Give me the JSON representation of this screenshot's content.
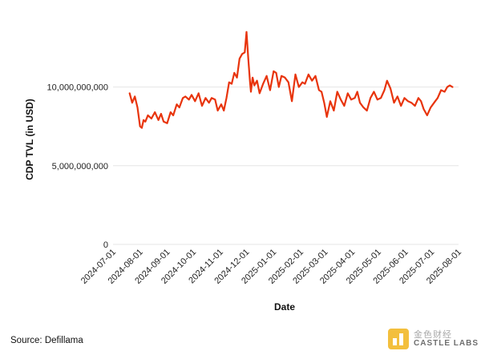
{
  "chart_data": {
    "type": "line",
    "title": "",
    "xlabel": "Date",
    "ylabel": "CDP TVL (in USD)",
    "y_ticks": [
      0,
      5000000000,
      10000000000
    ],
    "y_tick_labels": [
      "0",
      "5,000,000,000",
      "10,000,000,000"
    ],
    "ylim": [
      0,
      14000000000
    ],
    "x_ticks": [
      "2024-07-01",
      "2024-08-01",
      "2024-09-01",
      "2024-10-01",
      "2024-11-01",
      "2024-12-01",
      "2025-01-01",
      "2025-02-01",
      "2025-03-01",
      "2025-04-01",
      "2025-05-01",
      "2025-06-01",
      "2025-07-01",
      "2025-08-01"
    ],
    "xlim": [
      "2024-07-01",
      "2025-08-01"
    ],
    "grid": "horizontal",
    "line_color": "#e8340c",
    "series": [
      {
        "x": [
          "2024-07-20",
          "2024-07-23",
          "2024-07-26",
          "2024-07-29",
          "2024-08-01",
          "2024-08-03",
          "2024-08-05",
          "2024-08-07",
          "2024-08-10",
          "2024-08-14",
          "2024-08-18",
          "2024-08-22",
          "2024-08-25",
          "2024-08-28",
          "2024-09-01",
          "2024-09-05",
          "2024-09-08",
          "2024-09-12",
          "2024-09-15",
          "2024-09-19",
          "2024-09-22",
          "2024-09-26",
          "2024-09-29",
          "2024-10-03",
          "2024-10-07",
          "2024-10-11",
          "2024-10-15",
          "2024-10-19",
          "2024-10-22",
          "2024-10-26",
          "2024-10-29",
          "2024-11-02",
          "2024-11-05",
          "2024-11-08",
          "2024-11-11",
          "2024-11-14",
          "2024-11-17",
          "2024-11-20",
          "2024-11-23",
          "2024-11-26",
          "2024-11-29",
          "2024-12-01",
          "2024-12-03",
          "2024-12-05",
          "2024-12-06",
          "2024-12-08",
          "2024-12-10",
          "2024-12-13",
          "2024-12-16",
          "2024-12-20",
          "2024-12-24",
          "2024-12-28",
          "2025-01-01",
          "2025-01-04",
          "2025-01-07",
          "2025-01-10",
          "2025-01-14",
          "2025-01-18",
          "2025-01-22",
          "2025-01-26",
          "2025-01-30",
          "2025-02-03",
          "2025-02-06",
          "2025-02-10",
          "2025-02-14",
          "2025-02-18",
          "2025-02-22",
          "2025-02-25",
          "2025-02-28",
          "2025-03-03",
          "2025-03-07",
          "2025-03-11",
          "2025-03-15",
          "2025-03-19",
          "2025-03-23",
          "2025-03-27",
          "2025-03-31",
          "2025-04-04",
          "2025-04-07",
          "2025-04-10",
          "2025-04-14",
          "2025-04-18",
          "2025-04-22",
          "2025-04-26",
          "2025-04-30",
          "2025-05-04",
          "2025-05-08",
          "2025-05-11",
          "2025-05-15",
          "2025-05-19",
          "2025-05-23",
          "2025-05-27",
          "2025-05-31",
          "2025-06-04",
          "2025-06-08",
          "2025-06-12",
          "2025-06-16",
          "2025-06-19",
          "2025-06-22",
          "2025-06-26",
          "2025-06-30",
          "2025-07-04",
          "2025-07-08",
          "2025-07-12",
          "2025-07-16",
          "2025-07-19",
          "2025-07-22",
          "2025-07-25"
        ],
        "values": [
          9600000000,
          9000000000,
          9400000000,
          8700000000,
          7500000000,
          7400000000,
          7900000000,
          7800000000,
          8200000000,
          8000000000,
          8400000000,
          7900000000,
          8300000000,
          7800000000,
          7700000000,
          8400000000,
          8200000000,
          8900000000,
          8700000000,
          9300000000,
          9400000000,
          9200000000,
          9500000000,
          9100000000,
          9600000000,
          8800000000,
          9300000000,
          9000000000,
          9300000000,
          9200000000,
          8500000000,
          8900000000,
          8500000000,
          9300000000,
          10300000000,
          10200000000,
          10900000000,
          10600000000,
          11800000000,
          12100000000,
          12200000000,
          13500000000,
          11800000000,
          10300000000,
          9700000000,
          10600000000,
          10100000000,
          10400000000,
          9600000000,
          10200000000,
          10700000000,
          9800000000,
          11000000000,
          10900000000,
          10000000000,
          10700000000,
          10600000000,
          10300000000,
          9100000000,
          10800000000,
          10000000000,
          10300000000,
          10200000000,
          10800000000,
          10400000000,
          10700000000,
          9800000000,
          9700000000,
          9000000000,
          8100000000,
          9100000000,
          8500000000,
          9700000000,
          9200000000,
          8800000000,
          9600000000,
          9200000000,
          9300000000,
          9700000000,
          9000000000,
          8700000000,
          8500000000,
          9300000000,
          9700000000,
          9200000000,
          9300000000,
          9800000000,
          10400000000,
          9900000000,
          9000000000,
          9400000000,
          8800000000,
          9300000000,
          9100000000,
          9000000000,
          8800000000,
          9300000000,
          9100000000,
          8600000000,
          8200000000,
          8700000000,
          9000000000,
          9300000000,
          9800000000,
          9700000000,
          10000000000,
          10100000000,
          10000000000
        ]
      }
    ]
  },
  "footer": {
    "source": "Source: Defillama",
    "watermark_top": "金色财经",
    "watermark_bottom": "CASTLE LABS"
  }
}
